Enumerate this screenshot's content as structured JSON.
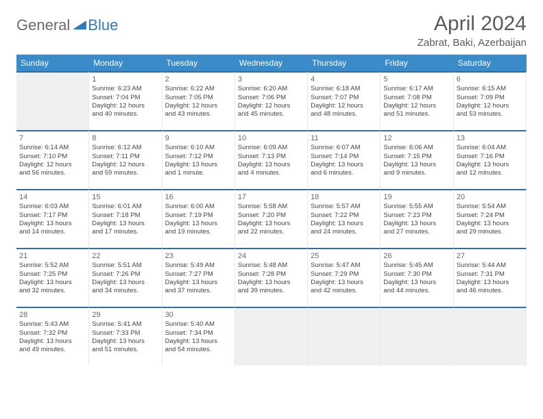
{
  "logo": {
    "part1": "General",
    "part2": "Blue"
  },
  "title": "April 2024",
  "location": "Zabrat, Baki, Azerbaijan",
  "colors": {
    "header_bg": "#3b8bc8",
    "header_text": "#ffffff",
    "cell_border_top": "#2f6fa6",
    "empty_bg": "#f0f0f0",
    "text": "#444444"
  },
  "daynames": [
    "Sunday",
    "Monday",
    "Tuesday",
    "Wednesday",
    "Thursday",
    "Friday",
    "Saturday"
  ],
  "weeks": [
    [
      null,
      {
        "n": "1",
        "sr": "Sunrise: 6:23 AM",
        "ss": "Sunset: 7:04 PM",
        "d1": "Daylight: 12 hours",
        "d2": "and 40 minutes."
      },
      {
        "n": "2",
        "sr": "Sunrise: 6:22 AM",
        "ss": "Sunset: 7:05 PM",
        "d1": "Daylight: 12 hours",
        "d2": "and 43 minutes."
      },
      {
        "n": "3",
        "sr": "Sunrise: 6:20 AM",
        "ss": "Sunset: 7:06 PM",
        "d1": "Daylight: 12 hours",
        "d2": "and 45 minutes."
      },
      {
        "n": "4",
        "sr": "Sunrise: 6:18 AM",
        "ss": "Sunset: 7:07 PM",
        "d1": "Daylight: 12 hours",
        "d2": "and 48 minutes."
      },
      {
        "n": "5",
        "sr": "Sunrise: 6:17 AM",
        "ss": "Sunset: 7:08 PM",
        "d1": "Daylight: 12 hours",
        "d2": "and 51 minutes."
      },
      {
        "n": "6",
        "sr": "Sunrise: 6:15 AM",
        "ss": "Sunset: 7:09 PM",
        "d1": "Daylight: 12 hours",
        "d2": "and 53 minutes."
      }
    ],
    [
      {
        "n": "7",
        "sr": "Sunrise: 6:14 AM",
        "ss": "Sunset: 7:10 PM",
        "d1": "Daylight: 12 hours",
        "d2": "and 56 minutes."
      },
      {
        "n": "8",
        "sr": "Sunrise: 6:12 AM",
        "ss": "Sunset: 7:11 PM",
        "d1": "Daylight: 12 hours",
        "d2": "and 59 minutes."
      },
      {
        "n": "9",
        "sr": "Sunrise: 6:10 AM",
        "ss": "Sunset: 7:12 PM",
        "d1": "Daylight: 13 hours",
        "d2": "and 1 minute."
      },
      {
        "n": "10",
        "sr": "Sunrise: 6:09 AM",
        "ss": "Sunset: 7:13 PM",
        "d1": "Daylight: 13 hours",
        "d2": "and 4 minutes."
      },
      {
        "n": "11",
        "sr": "Sunrise: 6:07 AM",
        "ss": "Sunset: 7:14 PM",
        "d1": "Daylight: 13 hours",
        "d2": "and 6 minutes."
      },
      {
        "n": "12",
        "sr": "Sunrise: 6:06 AM",
        "ss": "Sunset: 7:15 PM",
        "d1": "Daylight: 13 hours",
        "d2": "and 9 minutes."
      },
      {
        "n": "13",
        "sr": "Sunrise: 6:04 AM",
        "ss": "Sunset: 7:16 PM",
        "d1": "Daylight: 13 hours",
        "d2": "and 12 minutes."
      }
    ],
    [
      {
        "n": "14",
        "sr": "Sunrise: 6:03 AM",
        "ss": "Sunset: 7:17 PM",
        "d1": "Daylight: 13 hours",
        "d2": "and 14 minutes."
      },
      {
        "n": "15",
        "sr": "Sunrise: 6:01 AM",
        "ss": "Sunset: 7:18 PM",
        "d1": "Daylight: 13 hours",
        "d2": "and 17 minutes."
      },
      {
        "n": "16",
        "sr": "Sunrise: 6:00 AM",
        "ss": "Sunset: 7:19 PM",
        "d1": "Daylight: 13 hours",
        "d2": "and 19 minutes."
      },
      {
        "n": "17",
        "sr": "Sunrise: 5:58 AM",
        "ss": "Sunset: 7:20 PM",
        "d1": "Daylight: 13 hours",
        "d2": "and 22 minutes."
      },
      {
        "n": "18",
        "sr": "Sunrise: 5:57 AM",
        "ss": "Sunset: 7:22 PM",
        "d1": "Daylight: 13 hours",
        "d2": "and 24 minutes."
      },
      {
        "n": "19",
        "sr": "Sunrise: 5:55 AM",
        "ss": "Sunset: 7:23 PM",
        "d1": "Daylight: 13 hours",
        "d2": "and 27 minutes."
      },
      {
        "n": "20",
        "sr": "Sunrise: 5:54 AM",
        "ss": "Sunset: 7:24 PM",
        "d1": "Daylight: 13 hours",
        "d2": "and 29 minutes."
      }
    ],
    [
      {
        "n": "21",
        "sr": "Sunrise: 5:52 AM",
        "ss": "Sunset: 7:25 PM",
        "d1": "Daylight: 13 hours",
        "d2": "and 32 minutes."
      },
      {
        "n": "22",
        "sr": "Sunrise: 5:51 AM",
        "ss": "Sunset: 7:26 PM",
        "d1": "Daylight: 13 hours",
        "d2": "and 34 minutes."
      },
      {
        "n": "23",
        "sr": "Sunrise: 5:49 AM",
        "ss": "Sunset: 7:27 PM",
        "d1": "Daylight: 13 hours",
        "d2": "and 37 minutes."
      },
      {
        "n": "24",
        "sr": "Sunrise: 5:48 AM",
        "ss": "Sunset: 7:28 PM",
        "d1": "Daylight: 13 hours",
        "d2": "and 39 minutes."
      },
      {
        "n": "25",
        "sr": "Sunrise: 5:47 AM",
        "ss": "Sunset: 7:29 PM",
        "d1": "Daylight: 13 hours",
        "d2": "and 42 minutes."
      },
      {
        "n": "26",
        "sr": "Sunrise: 5:45 AM",
        "ss": "Sunset: 7:30 PM",
        "d1": "Daylight: 13 hours",
        "d2": "and 44 minutes."
      },
      {
        "n": "27",
        "sr": "Sunrise: 5:44 AM",
        "ss": "Sunset: 7:31 PM",
        "d1": "Daylight: 13 hours",
        "d2": "and 46 minutes."
      }
    ],
    [
      {
        "n": "28",
        "sr": "Sunrise: 5:43 AM",
        "ss": "Sunset: 7:32 PM",
        "d1": "Daylight: 13 hours",
        "d2": "and 49 minutes."
      },
      {
        "n": "29",
        "sr": "Sunrise: 5:41 AM",
        "ss": "Sunset: 7:33 PM",
        "d1": "Daylight: 13 hours",
        "d2": "and 51 minutes."
      },
      {
        "n": "30",
        "sr": "Sunrise: 5:40 AM",
        "ss": "Sunset: 7:34 PM",
        "d1": "Daylight: 13 hours",
        "d2": "and 54 minutes."
      },
      null,
      null,
      null,
      null
    ]
  ]
}
